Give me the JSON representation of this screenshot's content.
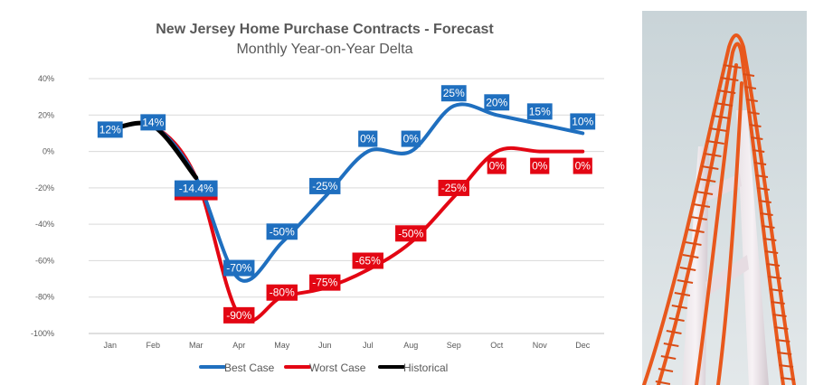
{
  "chart_data": {
    "type": "line",
    "title": "New Jersey Home Purchase Contracts - Forecast",
    "subtitle": "Monthly Year-on-Year Delta",
    "categories": [
      "Jan",
      "Feb",
      "Mar",
      "Apr",
      "May",
      "Jun",
      "Jul",
      "Aug",
      "Sep",
      "Oct",
      "Nov",
      "Dec"
    ],
    "ylim": [
      -100,
      40
    ],
    "yticks": [
      40,
      20,
      0,
      -20,
      -40,
      -60,
      -80,
      -100
    ],
    "ytick_labels": [
      "40%",
      "20%",
      "0%",
      "-20%",
      "-40%",
      "-60%",
      "-80%",
      "-100%"
    ],
    "grid": true,
    "legend_position": "bottom",
    "series": [
      {
        "name": "Best Case",
        "color": "#1f6fbf",
        "values": [
          12,
          14,
          -14.4,
          -70,
          -50,
          -25,
          0,
          0,
          25,
          20,
          15,
          10
        ],
        "labels": [
          "12%",
          "14%",
          "-14.4%",
          "-70%",
          "-50%",
          "-25%",
          "0%",
          "0%",
          "25%",
          "20%",
          "15%",
          "10%"
        ]
      },
      {
        "name": "Worst Case",
        "color": "#e30613",
        "values": [
          12,
          14,
          -14.4,
          -90,
          -80,
          -75,
          -65,
          -50,
          -25,
          0,
          0,
          0
        ],
        "labels": [
          null,
          null,
          "-14.4%",
          "-90%",
          "-80%",
          "-75%",
          "-65%",
          "-50%",
          "-25%",
          "0%",
          "0%",
          "0%"
        ]
      },
      {
        "name": "Historical",
        "color": "#000000",
        "values": [
          12,
          14,
          -14.4,
          null,
          null,
          null,
          null,
          null,
          null,
          null,
          null,
          null
        ]
      }
    ]
  },
  "image": {
    "subject": "roller-coaster-photo"
  }
}
